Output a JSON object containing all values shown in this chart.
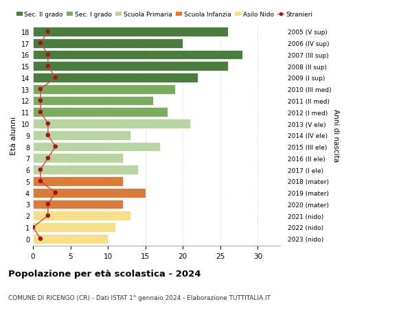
{
  "ages": [
    18,
    17,
    16,
    15,
    14,
    13,
    12,
    11,
    10,
    9,
    8,
    7,
    6,
    5,
    4,
    3,
    2,
    1,
    0
  ],
  "bar_values": [
    26,
    20,
    28,
    26,
    22,
    19,
    16,
    18,
    21,
    13,
    17,
    12,
    14,
    12,
    15,
    12,
    13,
    11,
    10
  ],
  "stranieri": [
    2,
    1,
    2,
    2,
    3,
    1,
    1,
    1,
    2,
    2,
    3,
    2,
    1,
    1,
    3,
    2,
    2,
    0,
    1
  ],
  "right_labels": [
    "2005 (V sup)",
    "2006 (IV sup)",
    "2007 (III sup)",
    "2008 (II sup)",
    "2009 (I sup)",
    "2010 (III med)",
    "2011 (II med)",
    "2012 (I med)",
    "2013 (V ele)",
    "2014 (IV ele)",
    "2015 (III ele)",
    "2016 (II ele)",
    "2017 (I ele)",
    "2018 (mater)",
    "2019 (mater)",
    "2020 (mater)",
    "2021 (nido)",
    "2022 (nido)",
    "2023 (nido)"
  ],
  "bar_colors": [
    "#4a7c3f",
    "#4a7c3f",
    "#4a7c3f",
    "#4a7c3f",
    "#4a7c3f",
    "#7aab5e",
    "#7aab5e",
    "#7aab5e",
    "#b8d4a0",
    "#b8d4a0",
    "#b8d4a0",
    "#b8d4a0",
    "#b8d4a0",
    "#d97b3a",
    "#d97b3a",
    "#d97b3a",
    "#f5e08a",
    "#f5e08a",
    "#f5e08a"
  ],
  "legend_labels": [
    "Sec. II grado",
    "Sec. I grado",
    "Scuola Primaria",
    "Scuola Infanzia",
    "Asilo Nido",
    "Stranieri"
  ],
  "legend_colors": [
    "#4a7c3f",
    "#7aab5e",
    "#b8d4a0",
    "#d97b3a",
    "#f5e08a",
    "#aa1111"
  ],
  "ylabel": "Età alunni",
  "right_ylabel": "Anni di nascita",
  "title": "Popolazione per età scolastica - 2024",
  "subtitle": "COMUNE DI RICENGO (CR) - Dati ISTAT 1° gennaio 2024 - Elaborazione TUTTITALIA.IT",
  "xlim": [
    0,
    33
  ],
  "background_color": "#ffffff",
  "grid_color": "#cccccc",
  "stranieri_color": "#aa1111",
  "stranieri_line_color": "#cc4444"
}
